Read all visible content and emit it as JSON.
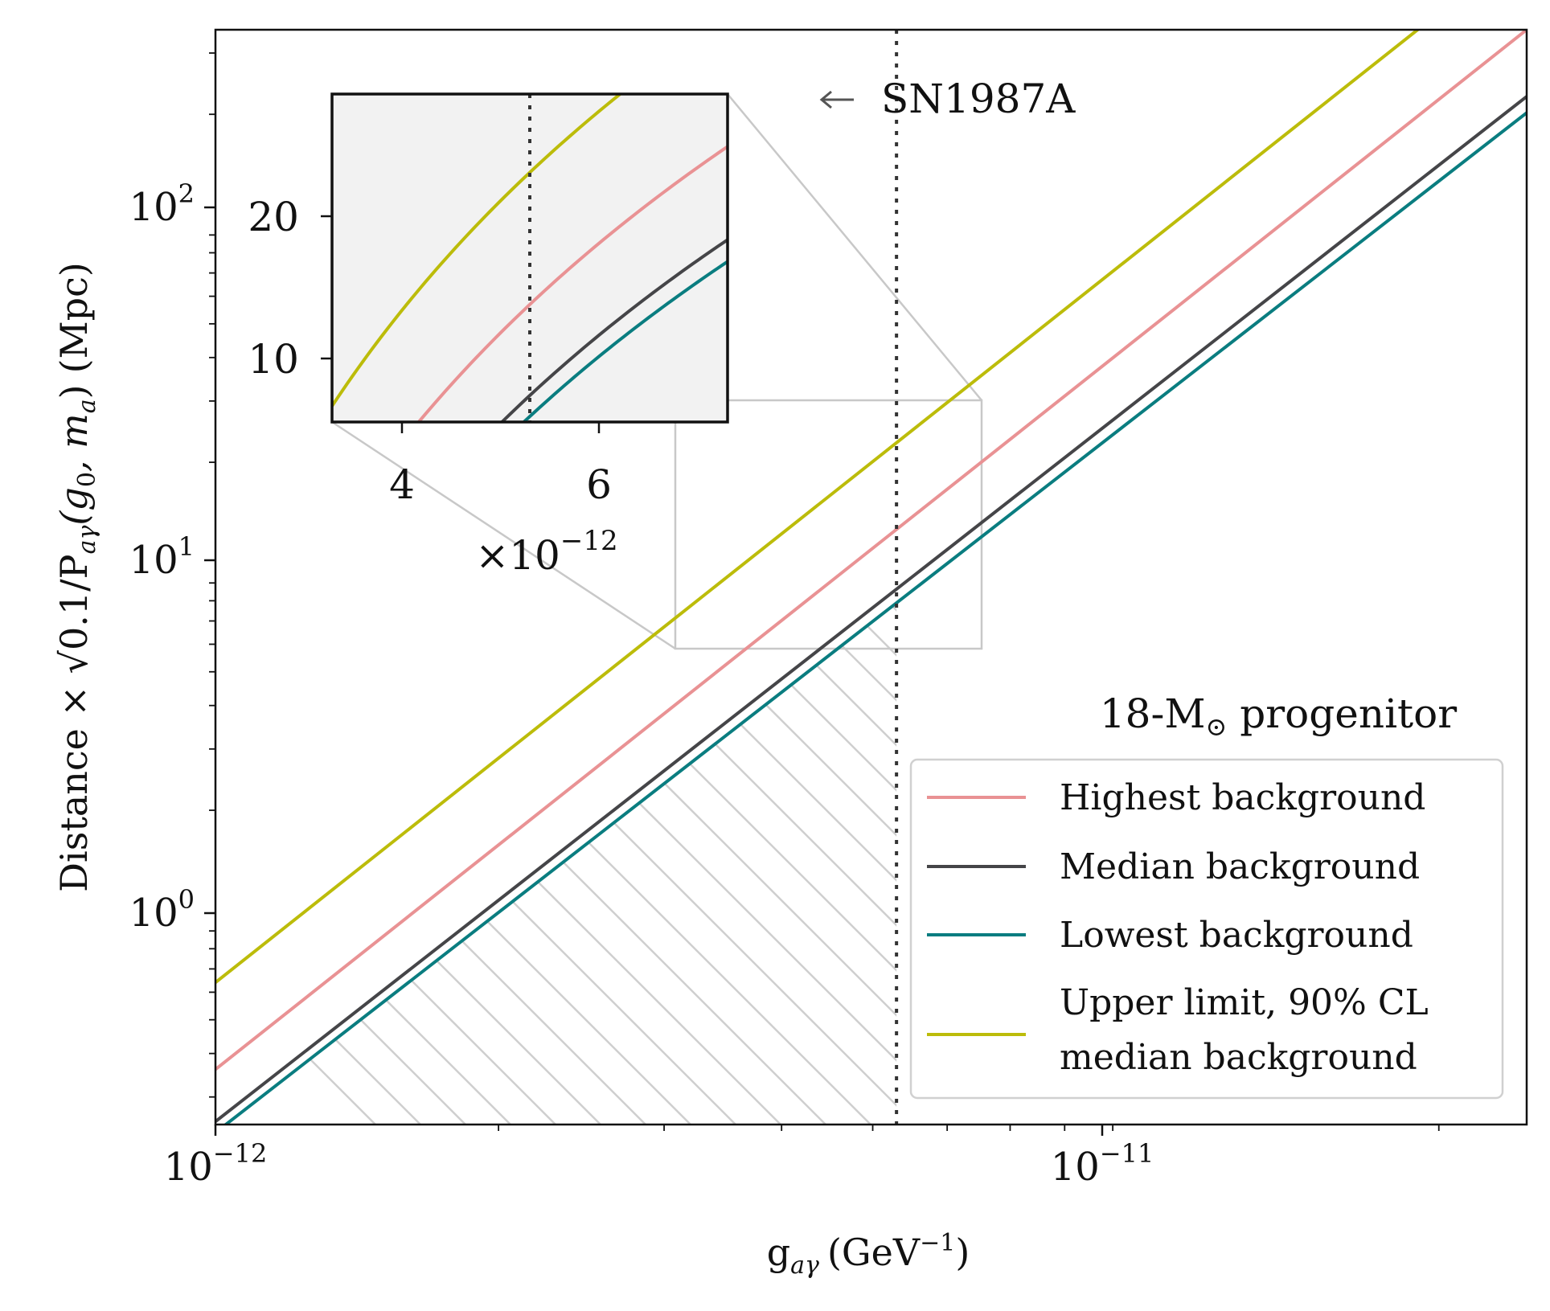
{
  "chart_data": {
    "type": "line",
    "xlabel": "g",
    "xlabel_sub": "aγ",
    "xlabel_unit": "(GeV",
    "xlabel_unit_exp": "−1",
    "xlabel_unit_close": ")",
    "ylabel": "Distance × √0.1/P",
    "ylabel_sub": "aγ",
    "ylabel_args": "(g",
    "ylabel_args_sub": "0",
    "ylabel_args_rest": ", m",
    "ylabel_args_sub2": "a",
    "ylabel_args_close": ")",
    "ylabel_unit": "(Mpc)",
    "xscale": "log",
    "yscale": "log",
    "xlim": [
      1e-12,
      2.48e-11
    ],
    "ylim": [
      0.25,
      350
    ],
    "x_ticks": [
      {
        "value": 1e-12,
        "base": "10",
        "exp": "−12"
      },
      {
        "value": 1e-11,
        "base": "10",
        "exp": "−11"
      }
    ],
    "y_ticks": [
      {
        "value": 1,
        "base": "10",
        "exp": "0"
      },
      {
        "value": 10,
        "base": "10",
        "exp": "1"
      },
      {
        "value": 100,
        "base": "10",
        "exp": "2"
      }
    ],
    "series": [
      {
        "name": "Highest background",
        "color": "#e99294",
        "x": [
          1e-12,
          2.48e-11
        ],
        "y": [
          0.36,
          350
        ]
      },
      {
        "name": "Median background",
        "color": "#454548",
        "x": [
          1e-12,
          2.48e-11
        ],
        "y": [
          0.255,
          225
        ]
      },
      {
        "name": "Lowest background",
        "color": "#0a7d80",
        "x": [
          1e-12,
          2.48e-11
        ],
        "y": [
          0.237,
          202
        ]
      },
      {
        "name": "Upper limit, 90% CL",
        "name_line2": "median background",
        "color": "#bcbc0a",
        "x": [
          1e-12,
          2.48e-11
        ],
        "y": [
          0.64,
          620
        ]
      }
    ],
    "vline": {
      "x": 5.3e-12,
      "label": "SN1987A",
      "arrow": "←"
    },
    "legend": {
      "title": "18-M",
      "title_sub": "⊙",
      "title_rest": " progenitor",
      "position": "lower right"
    },
    "hatch": {
      "description": "excluded region below lowest background, left of SN1987A line"
    },
    "inset": {
      "xlim": [
        3.3e-12,
        7.3e-12
      ],
      "ylim": [
        7.7,
        32
      ],
      "x_ticks": [
        {
          "value": 4e-12,
          "label": "4"
        },
        {
          "value": 6e-12,
          "label": "6"
        }
      ],
      "y_ticks": [
        {
          "value": 10,
          "label": "10"
        },
        {
          "value": 20,
          "label": "20"
        }
      ],
      "x_offset_label": "×10",
      "x_offset_exp": "−12",
      "background": "#f2f2f2"
    }
  }
}
